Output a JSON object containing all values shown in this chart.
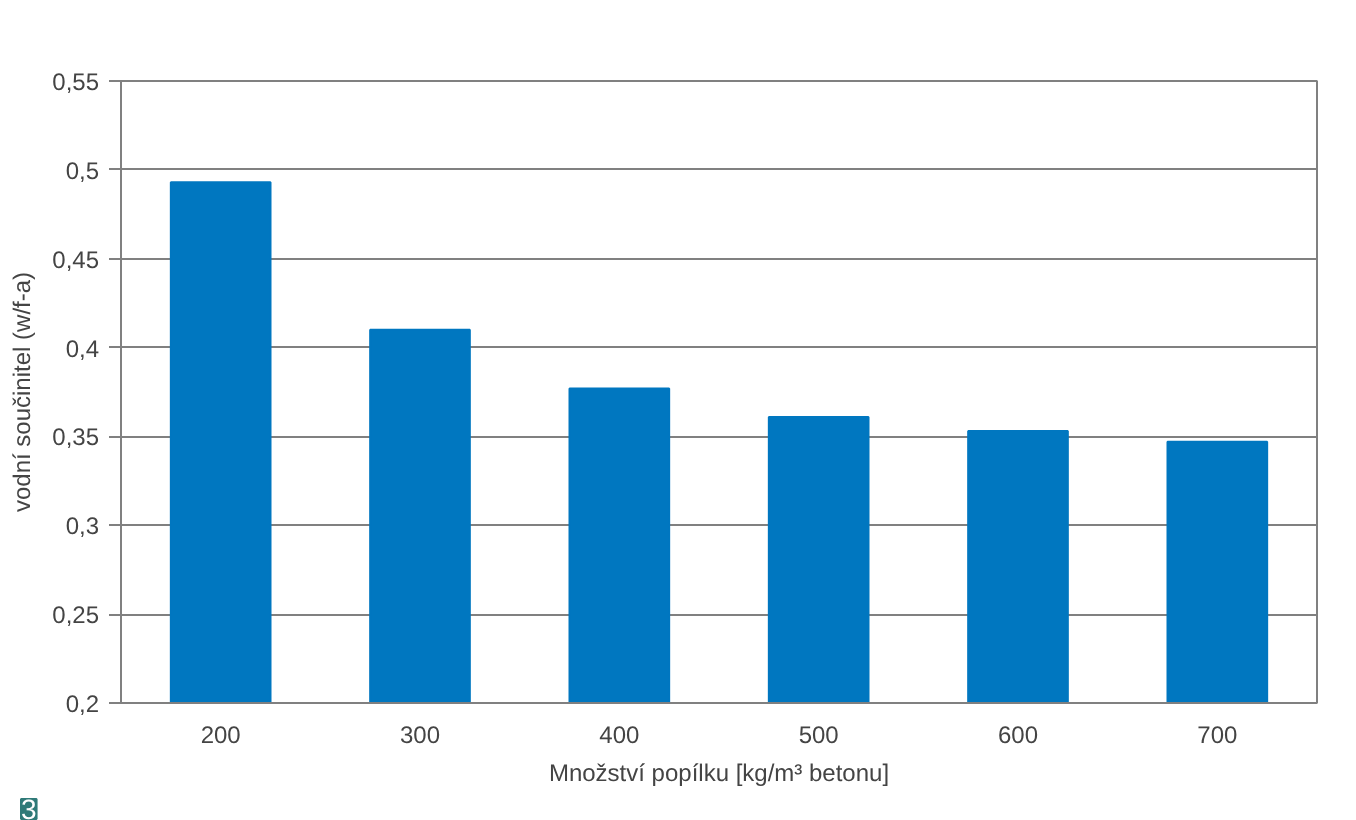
{
  "chart_data": {
    "type": "bar",
    "xlabel": "Množství popílku [kg/m³ betonu]",
    "ylabel": "vodní součinitel (w/f-a)",
    "categories": [
      "200",
      "300",
      "400",
      "500",
      "600",
      "700"
    ],
    "values": [
      0.493,
      0.41,
      0.377,
      0.361,
      0.353,
      0.347
    ],
    "color": "#0077c0",
    "ylim": [
      0.2,
      0.55
    ],
    "yticks": [
      {
        "value": 0.2,
        "label": "0,2"
      },
      {
        "value": 0.25,
        "label": "0,25"
      },
      {
        "value": 0.3,
        "label": "0,3"
      },
      {
        "value": 0.35,
        "label": "0,35"
      },
      {
        "value": 0.4,
        "label": "0,4"
      },
      {
        "value": 0.45,
        "label": "0,45"
      },
      {
        "value": 0.5,
        "label": "0,5"
      },
      {
        "value": 0.55,
        "label": "0,55"
      }
    ],
    "grid": "y",
    "annotations": [
      "3"
    ]
  }
}
